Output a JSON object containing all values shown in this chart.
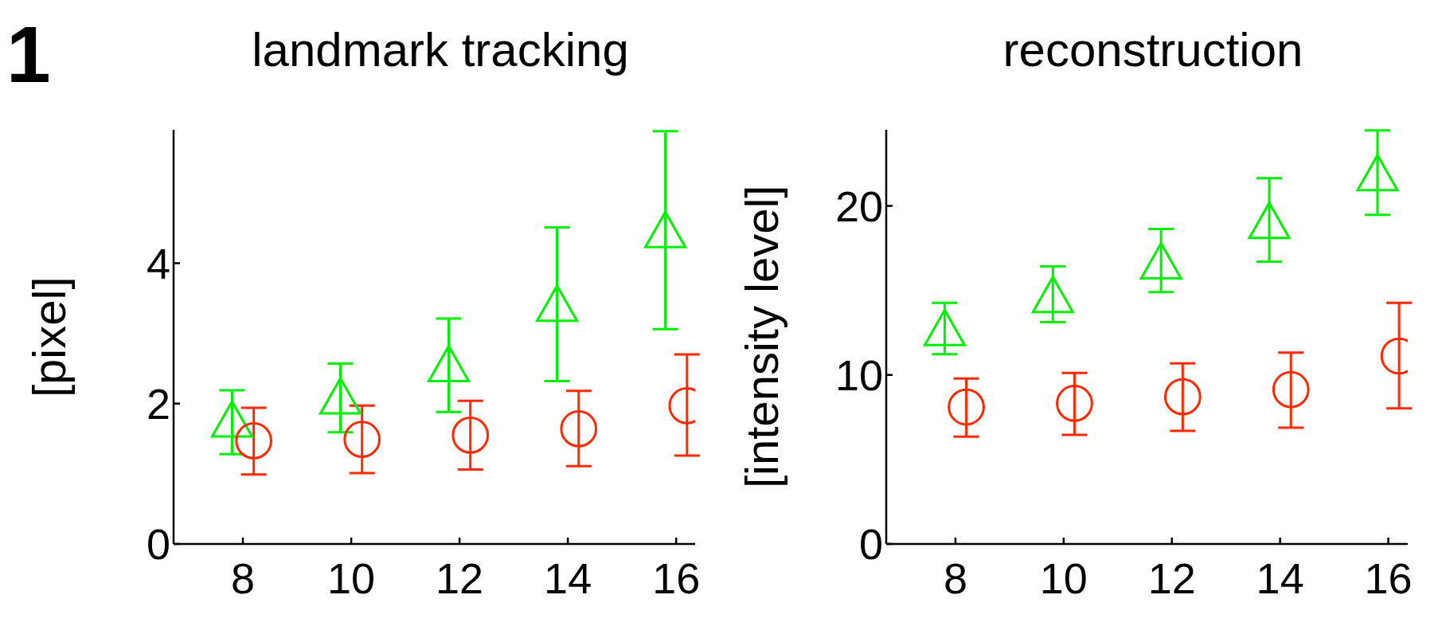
{
  "chart_data": [
    {
      "type": "scatter",
      "title": "landmark tracking",
      "ylabel": "[pixel]",
      "annotations": [
        "1"
      ],
      "xlim": [
        6.72,
        16.35
      ],
      "xticks": [
        8,
        10,
        12,
        14,
        16
      ],
      "ylim": [
        0,
        5.9
      ],
      "yticks": [
        0,
        2,
        4
      ],
      "grid": false,
      "legend": false,
      "series": [
        {
          "color": "#00ee00",
          "marker": "triangle",
          "x": [
            7.8,
            9.8,
            11.8,
            13.8,
            15.8
          ],
          "values": [
            1.78,
            2.11,
            2.57,
            3.43,
            4.48
          ],
          "errors": [
            [
              1.28,
              2.19
            ],
            [
              1.59,
              2.57
            ],
            [
              1.88,
              3.21
            ],
            [
              2.32,
              4.51
            ],
            [
              3.06,
              5.88
            ]
          ]
        },
        {
          "color": "#ff2a00",
          "marker": "circle",
          "x": [
            8.2,
            10.2,
            12.2,
            14.2,
            16.2
          ],
          "values": [
            1.47,
            1.49,
            1.55,
            1.64,
            1.97
          ],
          "errors": [
            [
              0.99,
              1.94
            ],
            [
              1.01,
              1.97
            ],
            [
              1.06,
              2.04
            ],
            [
              1.11,
              2.18
            ],
            [
              1.26,
              2.7
            ]
          ]
        }
      ]
    },
    {
      "type": "scatter",
      "title": "reconstruction",
      "ylabel": "[intensity level]",
      "xlim": [
        6.72,
        16.36
      ],
      "xticks": [
        8,
        10,
        12,
        14,
        16
      ],
      "ylim": [
        0,
        24.5
      ],
      "yticks": [
        0,
        10,
        20
      ],
      "grid": false,
      "legend": false,
      "series": [
        {
          "color": "#00ee00",
          "marker": "triangle",
          "x": [
            7.8,
            9.8,
            11.8,
            13.8,
            15.8
          ],
          "values": [
            12.8,
            14.76,
            16.75,
            19.14,
            21.97
          ],
          "errors": [
            [
              11.23,
              14.26
            ],
            [
              13.12,
              16.42
            ],
            [
              14.9,
              18.64
            ],
            [
              16.7,
              21.64
            ],
            [
              19.47,
              24.47
            ]
          ]
        },
        {
          "color": "#ff2a00",
          "marker": "circle",
          "x": [
            8.2,
            10.2,
            12.2,
            14.2,
            16.2
          ],
          "values": [
            8.1,
            8.32,
            8.71,
            9.13,
            11.12
          ],
          "errors": [
            [
              6.35,
              9.79
            ],
            [
              6.46,
              10.12
            ],
            [
              6.69,
              10.68
            ],
            [
              6.88,
              11.32
            ],
            [
              8.02,
              14.26
            ]
          ]
        }
      ]
    }
  ]
}
